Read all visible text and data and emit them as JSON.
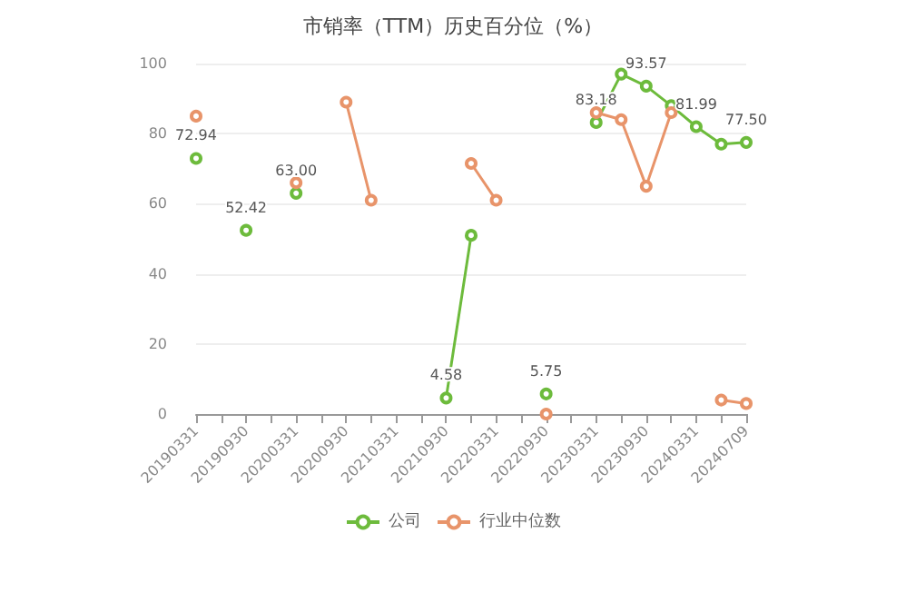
{
  "chart_data": {
    "type": "line",
    "title": "市销率（TTM）历史百分位（%）",
    "categories": [
      "20190331",
      null,
      "20190930",
      null,
      "20200331",
      null,
      "20200930",
      null,
      "20210331",
      null,
      "20210930",
      null,
      "20220331",
      null,
      "20220930",
      null,
      "20230331",
      null,
      "20230930",
      null,
      "20240331",
      null,
      "20240709"
    ],
    "series": [
      {
        "name": "公司",
        "color": "#6dbb3c",
        "values": [
          72.94,
          null,
          52.42,
          null,
          63.0,
          null,
          null,
          null,
          null,
          null,
          4.58,
          51,
          null,
          null,
          5.75,
          null,
          83.18,
          97,
          93.57,
          88,
          81.99,
          77,
          77.5
        ],
        "value_labels": [
          "72.94",
          null,
          "52.42",
          null,
          "63.00",
          null,
          null,
          null,
          null,
          null,
          "4.58",
          null,
          null,
          null,
          "5.75",
          null,
          "83.18",
          null,
          "93.57",
          null,
          "81.99",
          null,
          "77.50"
        ]
      },
      {
        "name": "行业中位数",
        "color": "#e8946a",
        "values": [
          85,
          null,
          null,
          null,
          66,
          null,
          89,
          61,
          null,
          null,
          null,
          71.5,
          61,
          null,
          0,
          null,
          86,
          84,
          65,
          86,
          null,
          4,
          3
        ]
      }
    ],
    "ylim": [
      0,
      100
    ],
    "yticks": [
      0,
      20,
      40,
      60,
      80,
      100
    ],
    "grid": "y",
    "legend": "bottom",
    "marker": "circle",
    "line_style": "solid"
  }
}
